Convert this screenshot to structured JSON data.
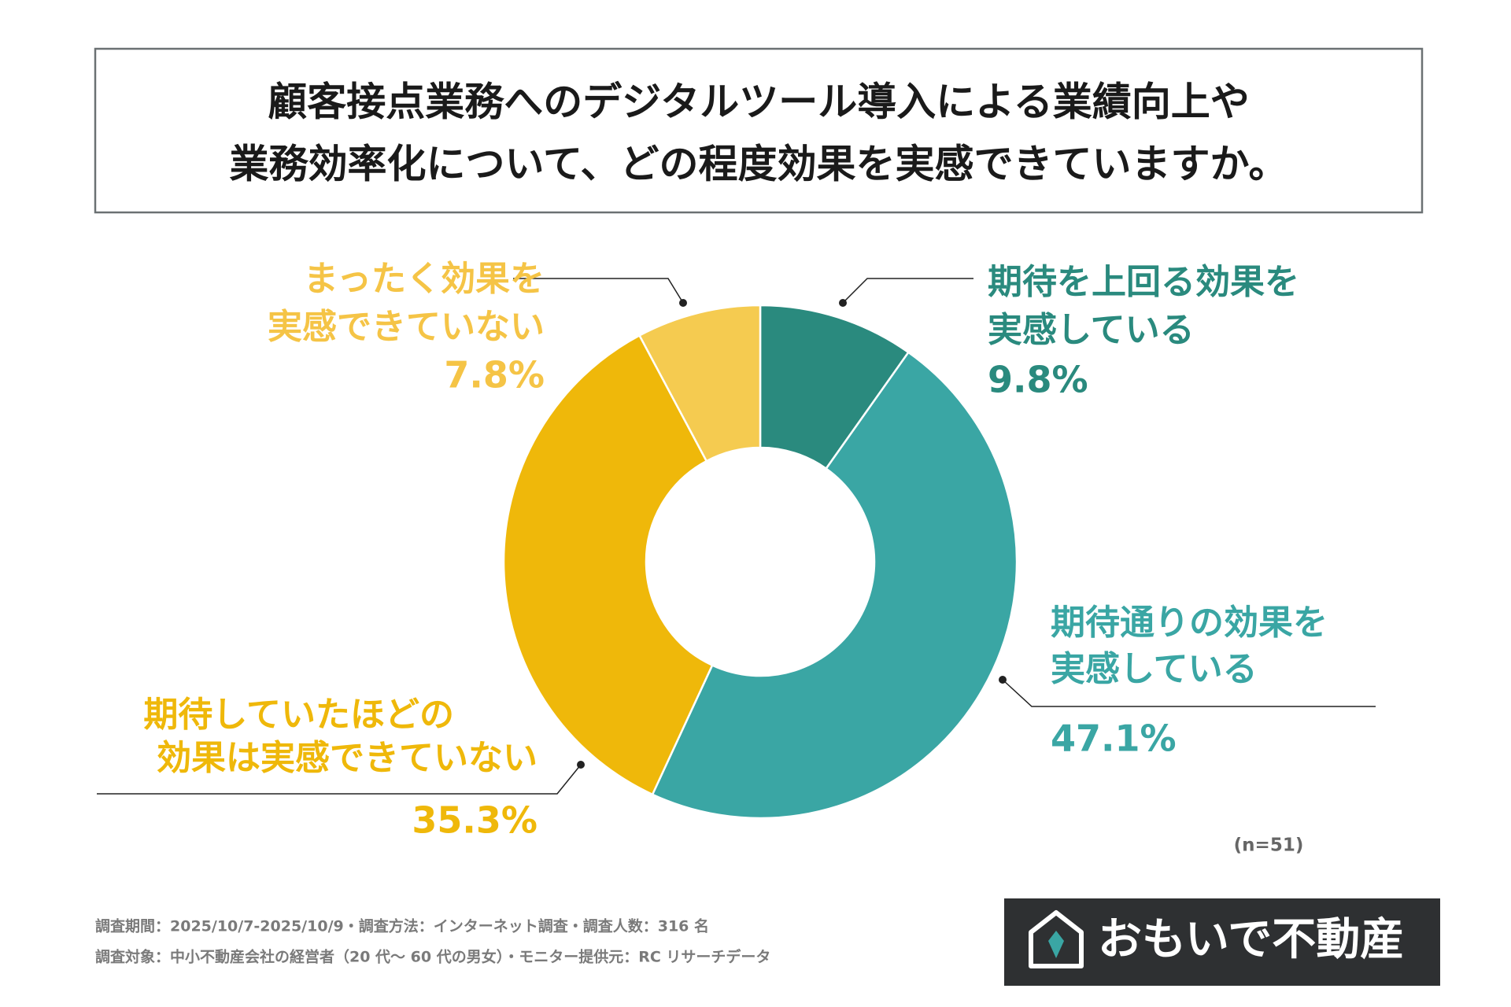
{
  "chart_data": {
    "type": "donut",
    "title": [
      "顧客接点業務へのデジタルツール導入による業績向上や",
      "業務効率化について、どの程度効果を実感できていますか。"
    ],
    "categories": [
      [
        "期待を上回る効果を",
        "実感している"
      ],
      [
        "期待通りの効果を",
        "実感している"
      ],
      [
        "期待していたほどの",
        "効果は実感できていない"
      ],
      [
        "まったく効果を",
        "実感できていない"
      ]
    ],
    "values": [
      9.8,
      47.1,
      35.3,
      7.8
    ],
    "value_labels": [
      "9.8%",
      "47.1%",
      "35.3%",
      "7.8%"
    ],
    "colors": [
      "#2a8a7e",
      "#3aa6a4",
      "#efb80a",
      "#f5cb50"
    ],
    "label_colors": [
      "#2a8a7e",
      "#3aa6a4",
      "#efb80a",
      "#f5c446"
    ],
    "note": "(n=51)"
  },
  "footer": [
    "調査期間：2025/10/7-2025/10/9・調査方法：インターネット調査・調査人数：316 名",
    "調査対象：中小不動産会社の経営者（20 代～ 60 代の男女）・モニター提供元：RC リサーチデータ"
  ],
  "logo": "おもいで不動産"
}
